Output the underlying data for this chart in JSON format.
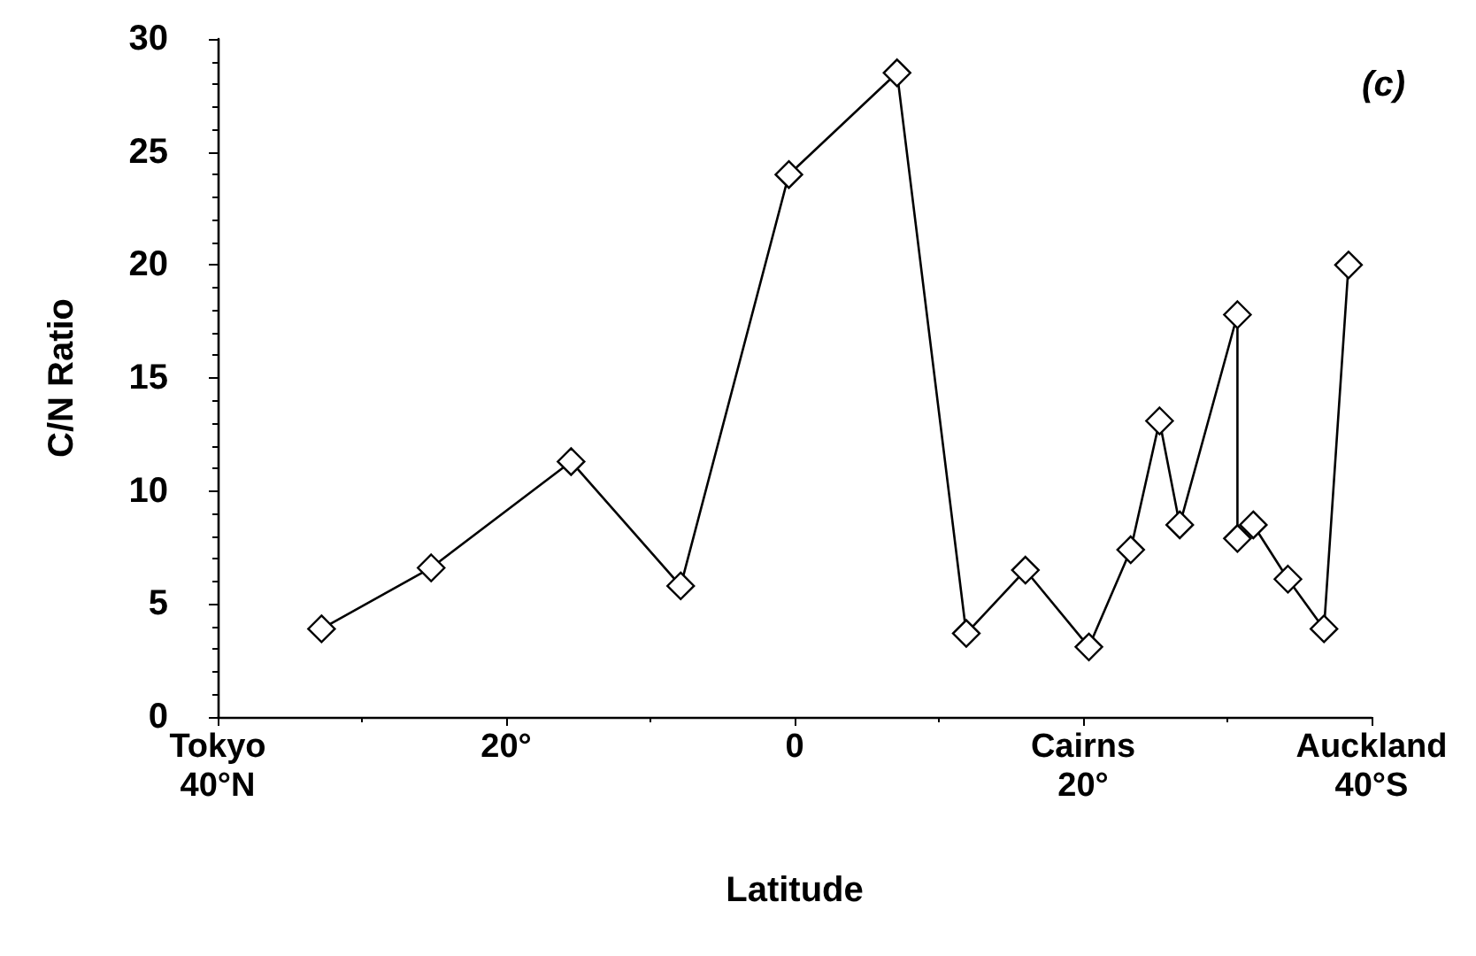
{
  "chart_data": {
    "type": "line",
    "xlabel": "Latitude",
    "ylabel": "C/N Ratio",
    "annotations": [
      "(c)"
    ],
    "x": [
      32.8,
      25.2,
      15.5,
      7.9,
      0.4,
      -7.1,
      -11.9,
      -16.0,
      -20.4,
      -23.3,
      -25.3,
      -26.7,
      -30.7,
      -30.7,
      -31.8,
      -34.2,
      -36.7,
      -38.4
    ],
    "series": [
      {
        "color": "#000000",
        "values": [
          3.9,
          6.6,
          11.3,
          5.8,
          24.0,
          28.5,
          3.7,
          6.5,
          3.1,
          7.4,
          13.1,
          8.5,
          17.8,
          7.9,
          8.5,
          6.1,
          3.9,
          20.0
        ]
      }
    ],
    "xlim": [
      40,
      -40
    ],
    "xticks": [
      {
        "value": 40,
        "label": "Tokyo\n40°N"
      },
      {
        "value": 20,
        "label": "20°"
      },
      {
        "value": 0,
        "label": "0"
      },
      {
        "value": -20,
        "label": "Cairns\n20°"
      },
      {
        "value": -40,
        "label": "Auckland\n40°S"
      }
    ],
    "ylim": [
      0,
      30
    ],
    "yticks": [
      0,
      5,
      10,
      15,
      20,
      25,
      30
    ],
    "grid": false,
    "marker": "diamond",
    "line_style": "solid"
  }
}
